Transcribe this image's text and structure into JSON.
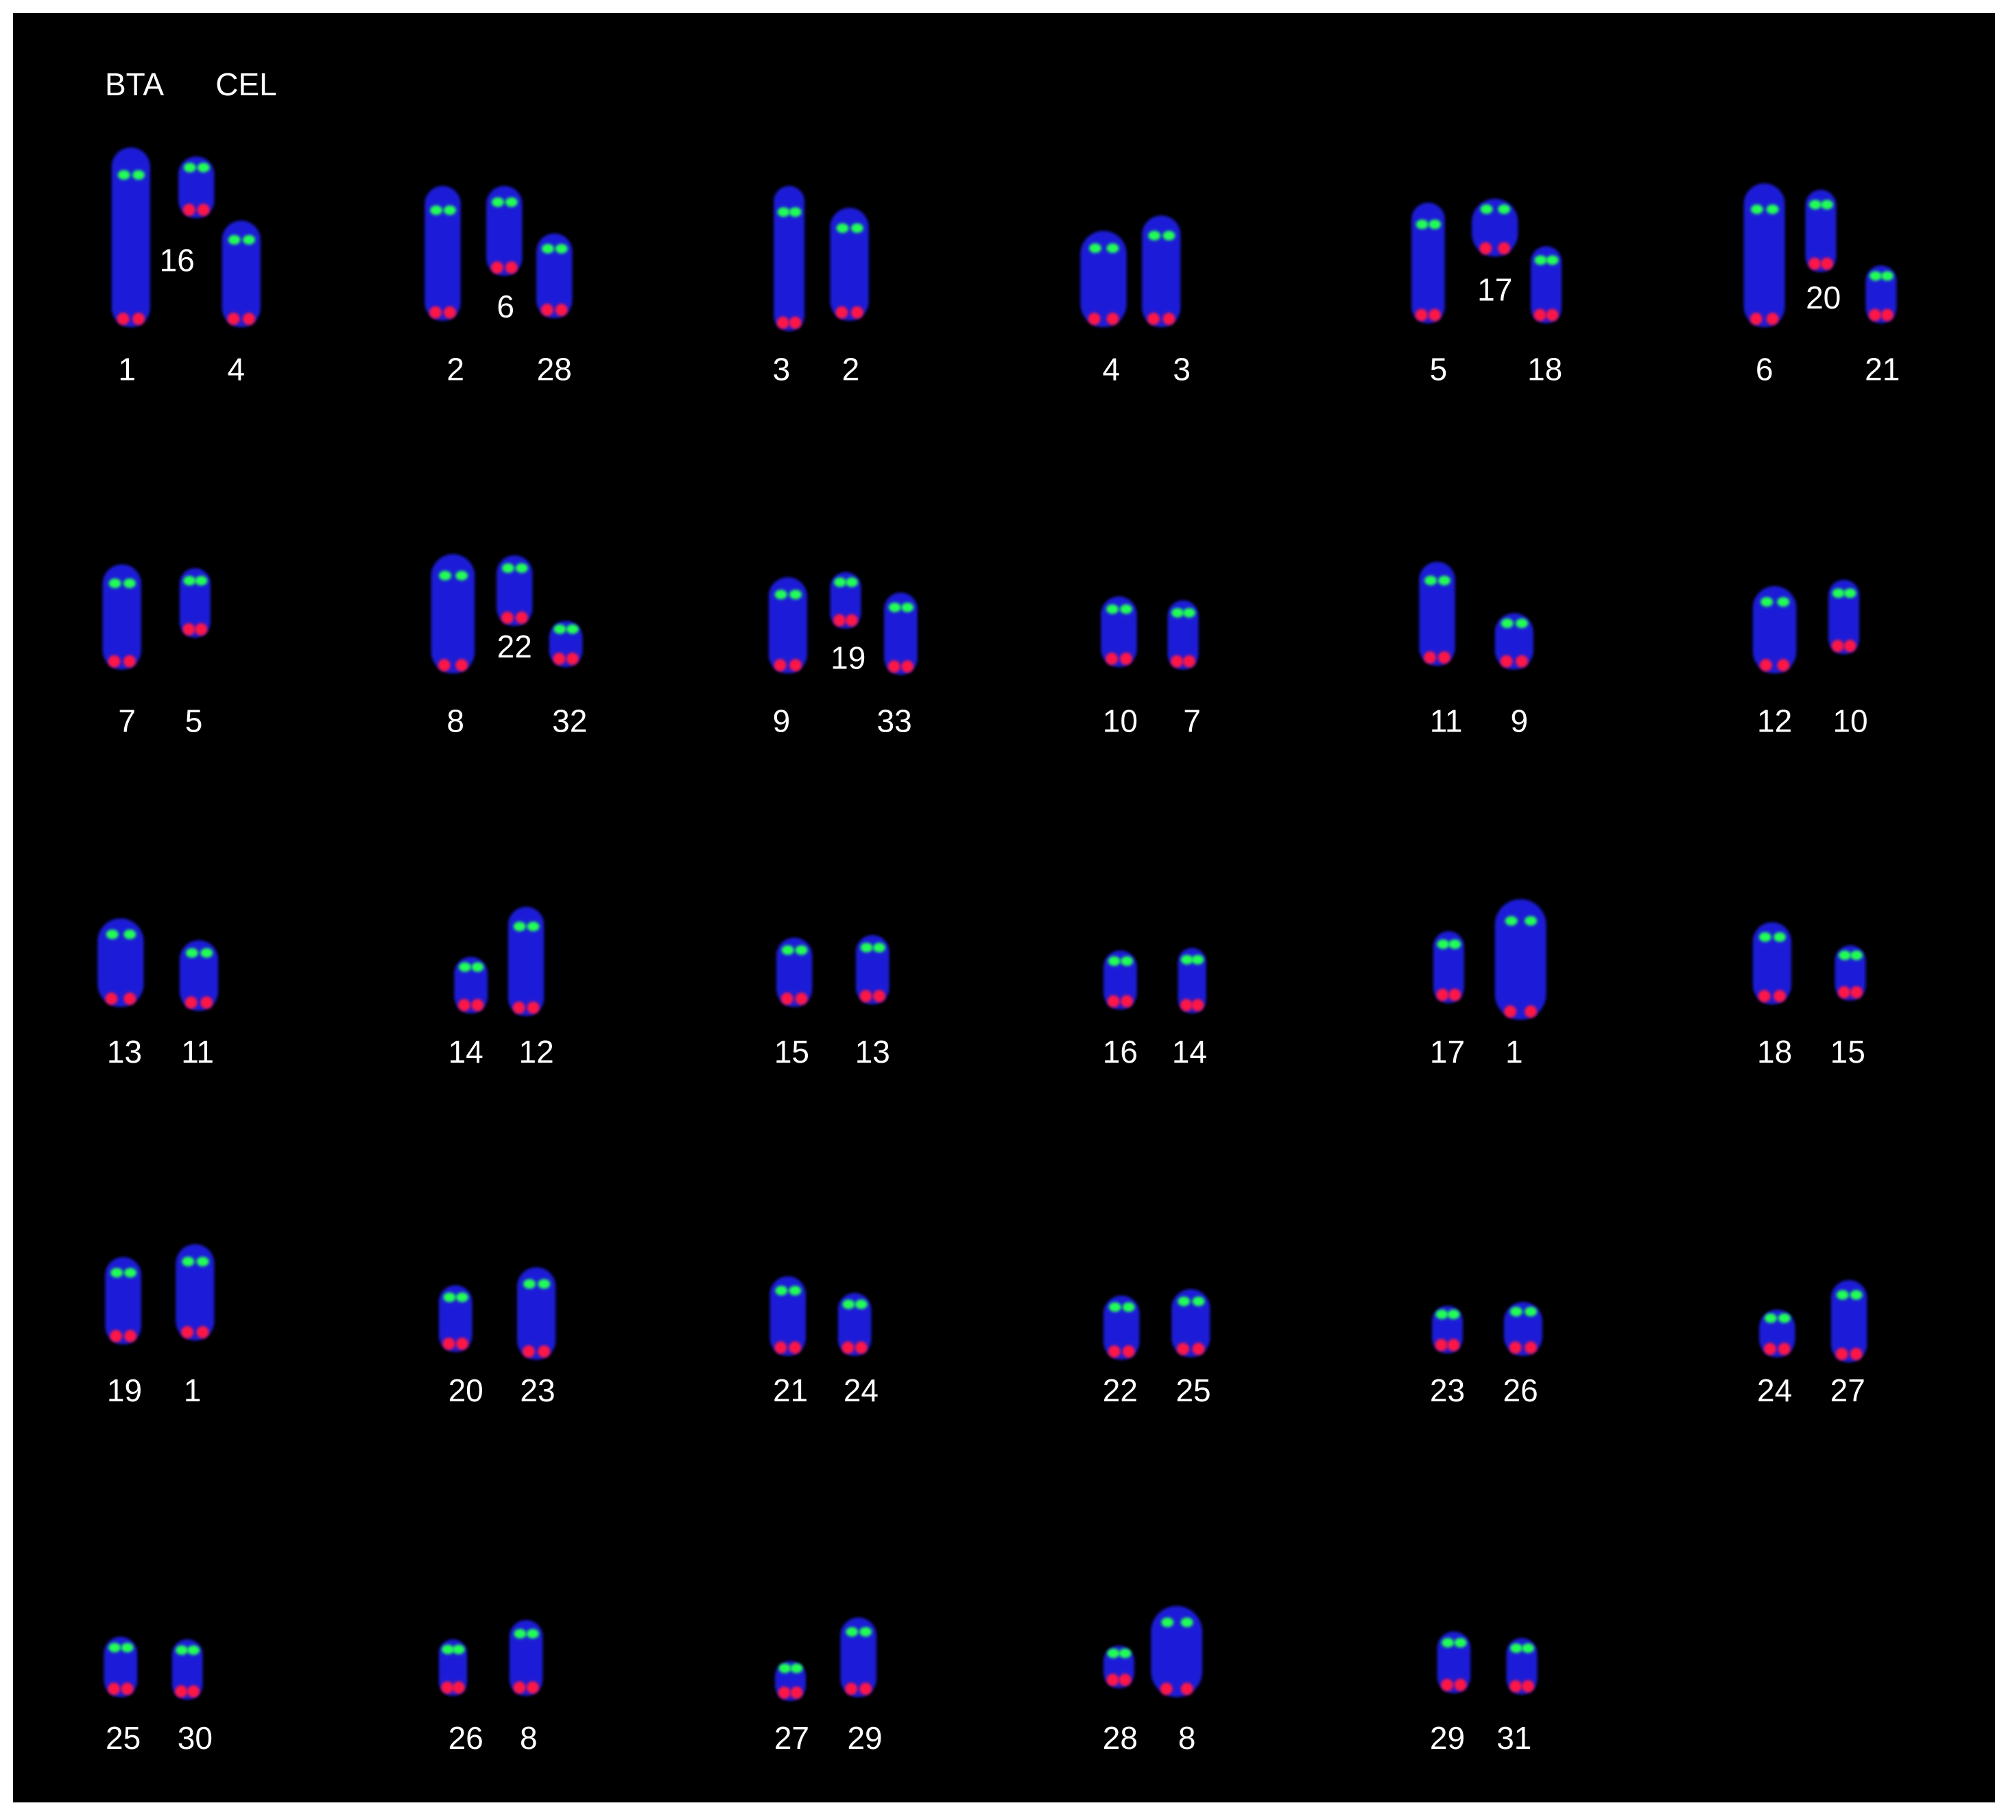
{
  "header": {
    "species_labels": [
      "BTA",
      "CEL"
    ]
  },
  "panels": [
    {
      "labels": [
        "1",
        "4",
        "16"
      ]
    },
    {
      "labels": [
        "2",
        "28",
        "6"
      ]
    },
    {
      "labels": [
        "3",
        "2"
      ]
    },
    {
      "labels": [
        "4",
        "3"
      ]
    },
    {
      "labels": [
        "5",
        "18",
        "17"
      ]
    },
    {
      "labels": [
        "6",
        "21",
        "20"
      ]
    },
    {
      "labels": [
        "7",
        "5"
      ]
    },
    {
      "labels": [
        "8",
        "32",
        "22"
      ]
    },
    {
      "labels": [
        "9",
        "33",
        "19"
      ]
    },
    {
      "labels": [
        "10",
        "7"
      ]
    },
    {
      "labels": [
        "11",
        "9"
      ]
    },
    {
      "labels": [
        "12",
        "10"
      ]
    },
    {
      "labels": [
        "13",
        "11"
      ]
    },
    {
      "labels": [
        "14",
        "12"
      ]
    },
    {
      "labels": [
        "15",
        "13"
      ]
    },
    {
      "labels": [
        "16",
        "14"
      ]
    },
    {
      "labels": [
        "17",
        "1"
      ]
    },
    {
      "labels": [
        "18",
        "15"
      ]
    },
    {
      "labels": [
        "19",
        "1"
      ]
    },
    {
      "labels": [
        "20",
        "23"
      ]
    },
    {
      "labels": [
        "21",
        "24"
      ]
    },
    {
      "labels": [
        "22",
        "25"
      ]
    },
    {
      "labels": [
        "23",
        "26"
      ]
    },
    {
      "labels": [
        "24",
        "27"
      ]
    },
    {
      "labels": [
        "25",
        "30"
      ]
    },
    {
      "labels": [
        "26",
        "8"
      ]
    },
    {
      "labels": [
        "27",
        "29"
      ]
    },
    {
      "labels": [
        "28",
        "8"
      ]
    },
    {
      "labels": [
        "29",
        "31"
      ]
    }
  ]
}
